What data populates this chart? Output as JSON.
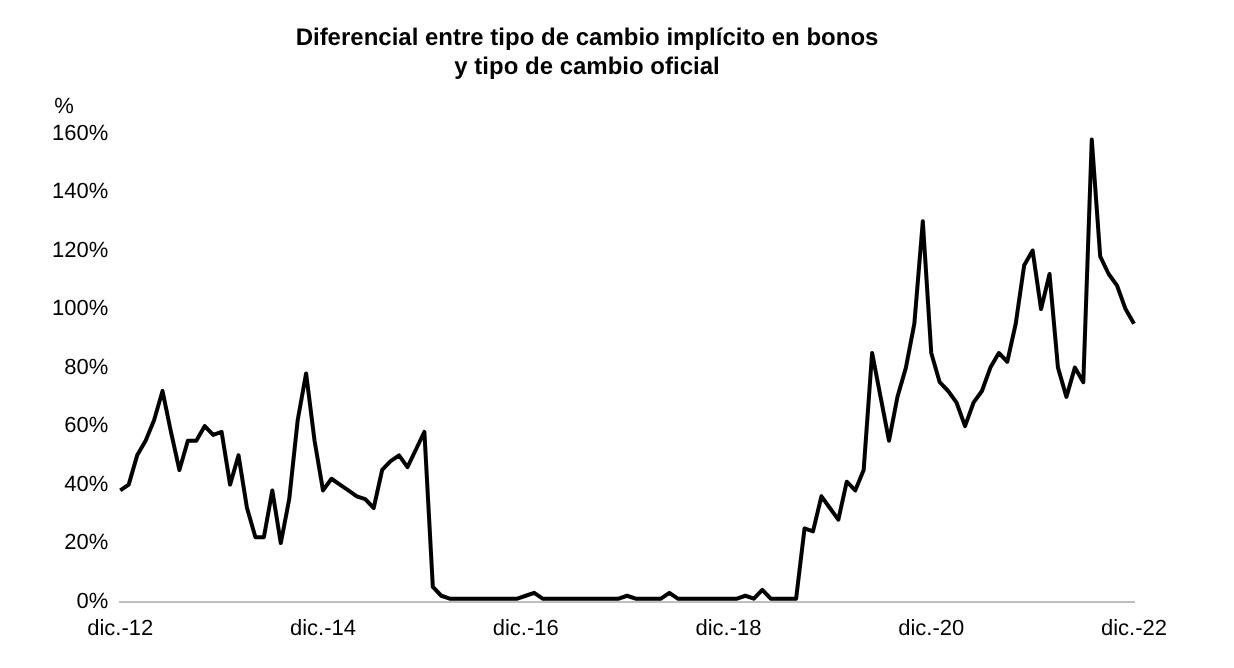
{
  "chart_data": {
    "type": "line",
    "title": "Diferencial entre tipo de cambio implícito en bonos\ny tipo de cambio oficial",
    "ylabel": "%",
    "categories": [
      "dic.-12",
      null,
      null,
      null,
      null,
      null,
      null,
      null,
      null,
      null,
      null,
      null,
      null,
      null,
      null,
      null,
      null,
      null,
      null,
      null,
      null,
      null,
      null,
      null,
      "dic.-14",
      null,
      null,
      null,
      null,
      null,
      null,
      null,
      null,
      null,
      null,
      null,
      null,
      null,
      null,
      null,
      null,
      null,
      null,
      null,
      null,
      null,
      null,
      null,
      "dic.-16",
      null,
      null,
      null,
      null,
      null,
      null,
      null,
      null,
      null,
      null,
      null,
      null,
      null,
      null,
      null,
      null,
      null,
      null,
      null,
      null,
      null,
      null,
      null,
      "dic.-18",
      null,
      null,
      null,
      null,
      null,
      null,
      null,
      null,
      null,
      null,
      null,
      null,
      null,
      null,
      null,
      null,
      null,
      null,
      null,
      null,
      null,
      null,
      null,
      "dic.-20",
      null,
      null,
      null,
      null,
      null,
      null,
      null,
      null,
      null,
      null,
      null,
      null,
      null,
      null,
      null,
      null,
      null,
      null,
      null,
      null,
      null,
      null,
      null,
      "dic.-22"
    ],
    "series": [
      {
        "color": "#000000",
        "values": [
          38,
          40,
          50,
          55,
          62,
          72,
          58,
          45,
          55,
          55,
          60,
          57,
          58,
          40,
          50,
          32,
          22,
          22,
          38,
          20,
          35,
          62,
          78,
          55,
          38,
          42,
          40,
          38,
          36,
          35,
          32,
          45,
          48,
          50,
          46,
          52,
          58,
          5,
          2,
          1,
          1,
          1,
          1,
          1,
          1,
          1,
          1,
          1,
          2,
          3,
          1,
          1,
          1,
          1,
          1,
          1,
          1,
          1,
          1,
          1,
          2,
          1,
          1,
          1,
          1,
          3,
          1,
          1,
          1,
          1,
          1,
          1,
          1,
          1,
          2,
          1,
          4,
          1,
          1,
          1,
          1,
          25,
          24,
          36,
          32,
          28,
          41,
          38,
          45,
          85,
          70,
          55,
          70,
          80,
          95,
          130,
          85,
          75,
          72,
          68,
          60,
          68,
          72,
          80,
          85,
          82,
          95,
          115,
          120,
          100,
          112,
          80,
          70,
          80,
          75,
          158,
          118,
          112,
          108,
          100,
          95
        ]
      }
    ],
    "ylim": [
      0,
      160
    ],
    "yticks": [
      {
        "value": 0,
        "label": "0%"
      },
      {
        "value": 20,
        "label": "20%"
      },
      {
        "value": 40,
        "label": "40%"
      },
      {
        "value": 60,
        "label": "60%"
      },
      {
        "value": 80,
        "label": "80%"
      },
      {
        "value": 100,
        "label": "100%"
      },
      {
        "value": 120,
        "label": "120%"
      },
      {
        "value": 140,
        "label": "140%"
      },
      {
        "value": 160,
        "label": "160%"
      }
    ],
    "grid": false,
    "legend": false,
    "marker": "none",
    "line_style": "solid"
  }
}
